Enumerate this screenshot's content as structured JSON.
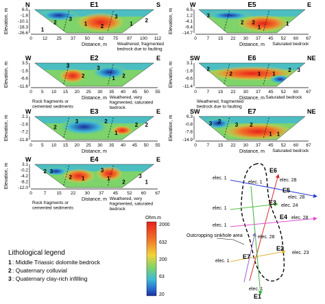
{
  "panels": [
    {
      "id": "E1",
      "left": "N",
      "right": "S",
      "x_label": "Distance, m",
      "y_label": "Elevation, m",
      "x_ticks": [
        "0",
        "12",
        "25",
        "37",
        "50",
        "62",
        "75",
        "87",
        "100",
        "112"
      ],
      "y_ticks": [
        "6.5",
        "-1.8",
        "-10.1",
        "-18.3",
        "-26.6"
      ],
      "annotation": "Weathered, fragmented bedrock due to faulting",
      "zones": [
        "1",
        "2",
        "3",
        "1",
        "2",
        "3",
        "1",
        "2"
      ]
    },
    {
      "id": "E5",
      "left": "W",
      "right": "E",
      "x_label": "Distance, m",
      "y_label": "Elevation, m",
      "x_ticks": [
        "0",
        "7",
        "15",
        "22",
        "30",
        "37",
        "45",
        "52",
        "60",
        "67"
      ],
      "y_ticks": [
        "6.5",
        "1.2",
        "-4.1",
        "-9.4",
        "-14.7"
      ],
      "annotation": "Saturated bedrock",
      "zones": [
        "3",
        "2",
        "2",
        "1",
        "1"
      ]
    },
    {
      "id": "E2",
      "left": "W",
      "right": "E",
      "x_label": "Distance, m",
      "y_label": "Elevation, m",
      "x_ticks": [
        "0",
        "5",
        "10",
        "15",
        "20",
        "25",
        "30",
        "35",
        "40",
        "45",
        "50",
        "55"
      ],
      "y_ticks": [
        "3.5",
        "-1.6",
        "-6.6",
        "-11.6"
      ],
      "annotation_left": "Rock fragments or cemented sediments",
      "annotation_right": "Weathered, very fragmented, saturated bedrock",
      "zones": [
        "3",
        "2",
        "3",
        "1",
        "2"
      ]
    },
    {
      "id": "E6",
      "left": "SW",
      "right": "NE",
      "x_label": "Distance, m",
      "y_label": "Elevation, m",
      "x_ticks": [
        "0",
        "7",
        "15",
        "22",
        "30",
        "37",
        "45",
        "52",
        "60",
        "67"
      ],
      "y_ticks": [
        "3.1",
        "-1.8",
        "-6.6",
        "-11.4"
      ],
      "annotation_left": "Weathered, fragmented bedrock due to faulting",
      "annotation_right": "Saturated bedrock",
      "zones": [
        "2",
        "2",
        "1",
        "1",
        "2",
        "3"
      ]
    },
    {
      "id": "E3",
      "left": "W",
      "right": "E",
      "x_label": "Distance, m",
      "y_label": "Elevation, m",
      "x_ticks": [
        "0",
        "5",
        "10",
        "15",
        "20",
        "25",
        "30",
        "35",
        "40",
        "45",
        "50",
        "55"
      ],
      "y_ticks": [
        "2.1",
        "-2.6",
        "-7.2",
        "-11.8"
      ],
      "zones": [
        "2",
        "3",
        "2",
        "1",
        "2",
        "2"
      ]
    },
    {
      "id": "E7",
      "left": "SW",
      "right": "NE",
      "x_label": "Distance, m",
      "y_label": "Elevation, m",
      "x_ticks": [
        "0",
        "7",
        "15",
        "22",
        "30",
        "37",
        "45",
        "52",
        "60",
        "67"
      ],
      "y_ticks": [
        "6.3",
        "-0.8",
        "-7.8",
        "-14.9"
      ],
      "annotation": "Saturated bedrock",
      "zones": [
        "3",
        "2",
        "3",
        "2",
        "1",
        "1"
      ]
    },
    {
      "id": "E4",
      "left": "W",
      "right": "E",
      "x_label": "Distance, m",
      "y_label": "Elevation, m",
      "x_ticks": [
        "0",
        "7",
        "15",
        "22",
        "30",
        "37",
        "45",
        "52",
        "60",
        "67"
      ],
      "y_ticks": [
        "3.1",
        "-0.2",
        "-4.2",
        "-8.2",
        "-12.0"
      ],
      "annotation_left": "Rock fragments or cemented sediments",
      "annotation_right": "Weathered, very fragmented, saturated bedrock",
      "zones": [
        "2",
        "3",
        "2",
        "1",
        "3",
        "1",
        "2",
        "3",
        "1"
      ]
    }
  ],
  "colorbar": {
    "unit": "Ohm.m",
    "values": [
      "2000",
      "632",
      "200",
      "63",
      "20"
    ],
    "colors": [
      "#e8201c",
      "#f07a2a",
      "#f4d33a",
      "#7ed36a",
      "#3fb9d8",
      "#2a6fd0",
      "#1a2fa0"
    ]
  },
  "legend": {
    "title": "Lithological legend",
    "items": [
      {
        "num": "1",
        "text": "Middle Triassic dolomite bedrock"
      },
      {
        "num": "2",
        "text": "Quaternary colluvial"
      },
      {
        "num": "3",
        "text": "Quaternary clay-rich infilling"
      }
    ]
  },
  "map": {
    "area_label": "Outcropping sinkhole area",
    "lines": [
      {
        "id": "E6",
        "color": "#d62a2a",
        "start_label": "elec. 28",
        "elec1": "elec. 1"
      },
      {
        "id": "E5",
        "color": "#2a3ad6",
        "start_label": "elec. 28",
        "elec1": "elec. 1"
      },
      {
        "id": "E3",
        "color": "#4fbf3a",
        "start_label": "elec. 24",
        "elec1": "elec. 1"
      },
      {
        "id": "E4",
        "color": "#e04fd0",
        "start_label": "elec. 28",
        "elec1": "elec. 1"
      },
      {
        "id": "E2",
        "color": "#e0b43a",
        "start_label": "elec. 23",
        "elec1": "elec. 1"
      },
      {
        "id": "E7",
        "color": "#9a5fd0",
        "start_label": "elec. 28",
        "elec1": "elec. 1"
      },
      {
        "id": "E1",
        "color": "#3aaf3a",
        "start_label": "elec. 1",
        "elec1": "elec. 1"
      }
    ]
  }
}
